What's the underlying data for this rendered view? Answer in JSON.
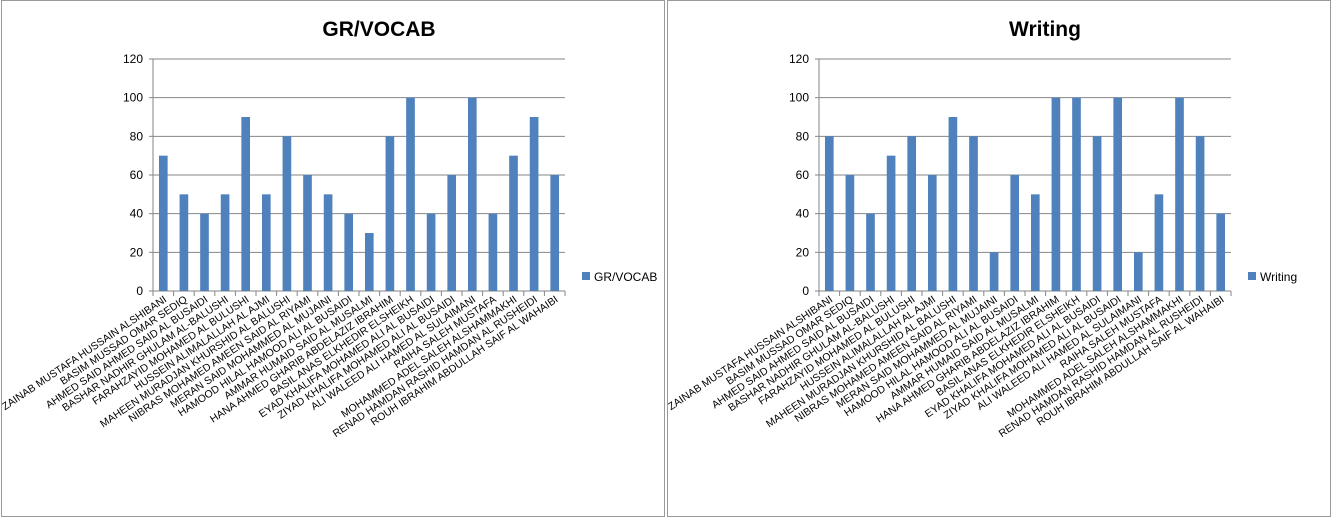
{
  "chart_data": [
    {
      "type": "bar",
      "title": "GR/VOCAB",
      "xlabel": "",
      "ylabel": "",
      "ylim": [
        0,
        120
      ],
      "yticks": [
        0,
        20,
        40,
        60,
        80,
        100,
        120
      ],
      "grid": true,
      "legend_position": "right",
      "color": "#4f81bd",
      "categories": [
        "ZAINAB MUSTAFA HUSSAIN ALSHIBANI",
        "BASIM MUSSAD OMAR SEDIQ",
        "AHMED SAID AHMED SAID AL BUSAIDI",
        "BASHAR NADHIR GHULAM AL-BALUSHI",
        "FARAHZAYID MOHAMED AL BULUSHI",
        "HUSSEIN ALIMALALLAH AL AJMI",
        "MAHEEN MURADJAN KHURSHID AL BALUSHI",
        "NIBRAS MOHAMED AMEEN SAID AL RIYAMI",
        "MERAN SAID MOHAMMED AL MUJAINI",
        "HAMOOD HILAL HAMOOD ALI AL BUSAIDI",
        "AMMAR HUMAID SAID AL MUSALMI",
        "HANA AHMED GHARIB ABDELAZIZ IBRAHIM",
        "BASIL ANAS ELKHEDIR ELSHEIKH",
        "EYAD KHALIFA MOHAMED ALI AL BUSAIDI",
        "ZIYAD KHALIFA MOHAMED ALI AL BUSAIDI",
        "ALI WALEED ALI HAMED AL SULAIMANI",
        "RAIHA SALEH MUSTAFA",
        "MOHAMMED ADEL SALEH ALSHAMMAKHI",
        "RENAD HAMDAN RASHID HAMDAN AL RUSHEIDI",
        "ROUH IBRAHIM ABDULLAH SAIF AL WAHAIBI"
      ],
      "series": [
        {
          "name": "GR/VOCAB",
          "values": [
            70,
            50,
            40,
            50,
            90,
            50,
            80,
            60,
            50,
            40,
            30,
            80,
            100,
            40,
            60,
            100,
            40,
            70,
            90,
            60
          ]
        }
      ]
    },
    {
      "type": "bar",
      "title": "Writing",
      "xlabel": "",
      "ylabel": "",
      "ylim": [
        0,
        120
      ],
      "yticks": [
        0,
        20,
        40,
        60,
        80,
        100,
        120
      ],
      "grid": true,
      "legend_position": "right",
      "color": "#4f81bd",
      "categories": [
        "ZAINAB MUSTAFA HUSSAIN ALSHIBANI",
        "BASIM MUSSAD OMAR SEDIQ",
        "AHMED SAID AHMED SAID AL BUSAIDI",
        "BASHAR NADHIR GHULAM AL-BALUSHI",
        "FARAHZAYID MOHAMED AL BULUSHI",
        "HUSSEIN ALIMALALLAH AL AJMI",
        "MAHEEN MURADJAN KHURSHID AL BALUSHI",
        "NIBRAS MOHAMED AMEEN SAID AL RIYAMI",
        "MERAN SAID MOHAMMED AL MUJAINI",
        "HAMOOD HILAL HAMOOD ALI AL BUSAIDI",
        "AMMAR HUMAID SAID AL MUSALMI",
        "HANA AHMED GHARIB ABDELAZIZ IBRAHIM",
        "BASIL ANAS ELKHEDIR ELSHEIKH",
        "EYAD KHALIFA MOHAMED ALI AL BUSAIDI",
        "ZIYAD KHALIFA MOHAMED ALI AL BUSAIDI",
        "ALI WALEED ALI HAMED AL SULAIMANI",
        "RAIHA SALEH MUSTAFA",
        "MOHAMMED ADEL SALEH ALSHAMMAKHI",
        "RENAD HAMDAN RASHID HAMDAN AL RUSHEIDI",
        "ROUH IBRAHIM ABDULLAH SAIF AL WAHAIBI"
      ],
      "series": [
        {
          "name": "Writing",
          "values": [
            80,
            60,
            40,
            70,
            80,
            60,
            90,
            80,
            20,
            60,
            50,
            100,
            100,
            80,
            100,
            20,
            50,
            100,
            80,
            40
          ]
        }
      ]
    }
  ]
}
